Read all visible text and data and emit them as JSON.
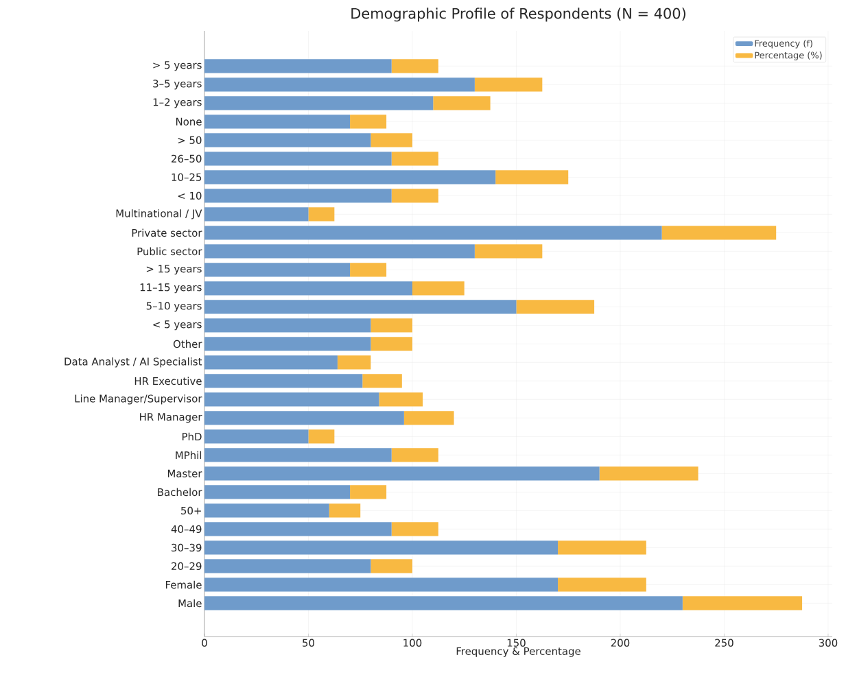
{
  "chart_data": {
    "type": "bar",
    "orientation": "horizontal",
    "stacked": true,
    "title": "Demographic Profile of Respondents (N = 400)",
    "xlabel": "Frequency & Percentage",
    "categories": [
      "> 5 years",
      "3–5 years",
      "1–2 years",
      "None",
      "> 50",
      "26–50",
      "10–25",
      "< 10",
      "Multinational / JV",
      "Private sector",
      "Public sector",
      "> 15 years",
      "11–15 years",
      "5–10 years",
      "< 5 years",
      "Other",
      "Data Analyst / AI Specialist",
      "HR Executive",
      "Line Manager/Supervisor",
      "HR Manager",
      "PhD",
      "MPhil",
      "Master",
      "Bachelor",
      "50+",
      "40–49",
      "30–39",
      "20–29",
      "Female",
      "Male"
    ],
    "series": [
      {
        "name": "Frequency (f)",
        "color": "#6f9bcb",
        "values": [
          90,
          130,
          110,
          70,
          80,
          90,
          140,
          90,
          50,
          220,
          130,
          70,
          100,
          150,
          80,
          80,
          64,
          76,
          84,
          96,
          50,
          90,
          190,
          70,
          60,
          90,
          170,
          80,
          170,
          230
        ]
      },
      {
        "name": "Percentage (%)",
        "color": "#f8b942",
        "values": [
          22.5,
          32.5,
          27.5,
          17.5,
          20,
          22.5,
          35,
          22.5,
          12.5,
          55,
          32.5,
          17.5,
          25,
          37.5,
          20,
          20,
          16,
          19,
          21,
          24,
          12.5,
          22.5,
          47.5,
          17.5,
          15,
          22.5,
          42.5,
          20,
          42.5,
          57.5
        ]
      }
    ],
    "xlim": [
      0,
      302
    ],
    "xticks": [
      0,
      50,
      100,
      150,
      200,
      250,
      300
    ],
    "grid": true,
    "legend": "top right"
  }
}
